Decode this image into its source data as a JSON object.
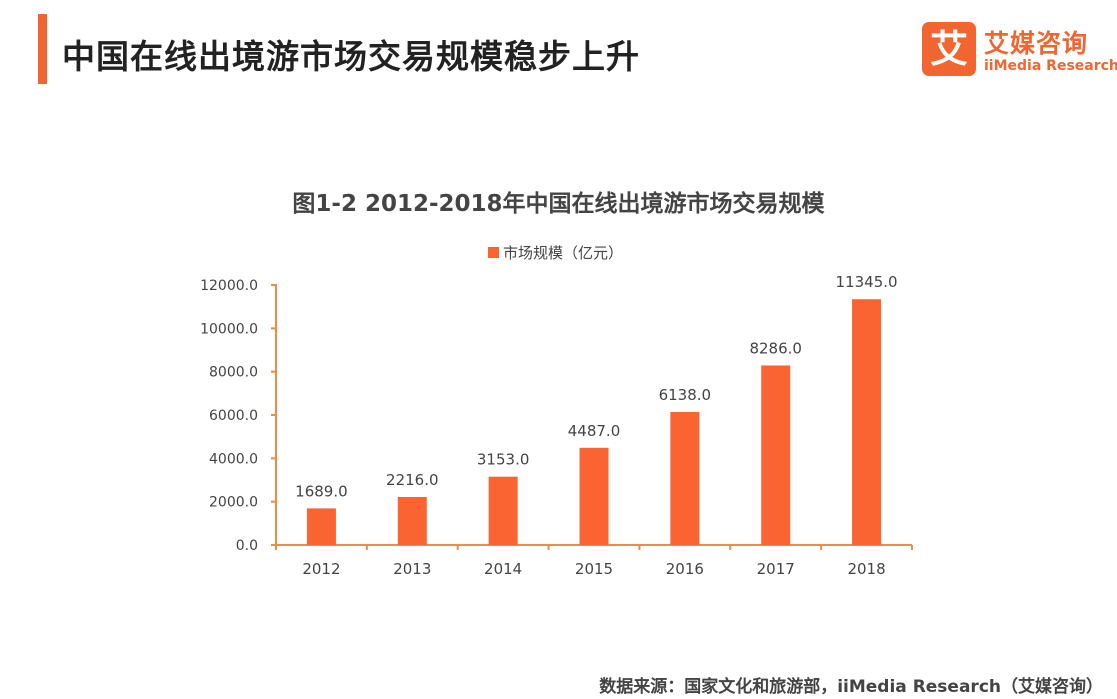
{
  "header": {
    "title": "中国在线出境游市场交易规模稳步上升"
  },
  "logo": {
    "mark": "艾",
    "name_cn": "艾媒咨询",
    "name_en": "iiMedia Research"
  },
  "colors": {
    "accent": "#F26530",
    "bar": "#FA6432",
    "axis": "#F28C3C",
    "text": "#444444"
  },
  "chart_data": {
    "type": "bar",
    "title": "图1-2 2012-2018年中国在线出境游市场交易规模",
    "categories": [
      "2012",
      "2013",
      "2014",
      "2015",
      "2016",
      "2017",
      "2018"
    ],
    "series": [
      {
        "name": "市场规模（亿元）",
        "values": [
          1689.0,
          2216.0,
          3153.0,
          4487.0,
          6138.0,
          8286.0,
          11345.0
        ]
      }
    ],
    "value_labels": [
      "1689.0",
      "2216.0",
      "3153.0",
      "4487.0",
      "6138.0",
      "8286.0",
      "11345.0"
    ],
    "yticks": [
      "0.0",
      "2000.0",
      "4000.0",
      "6000.0",
      "8000.0",
      "10000.0",
      "12000.0"
    ],
    "ylim": [
      0,
      12000
    ],
    "xlabel": "",
    "ylabel": "",
    "legend_position": "top-center",
    "grid": false
  },
  "footer": {
    "source": "数据来源：国家文化和旅游部，iiMedia Research（艾媒咨询）"
  }
}
